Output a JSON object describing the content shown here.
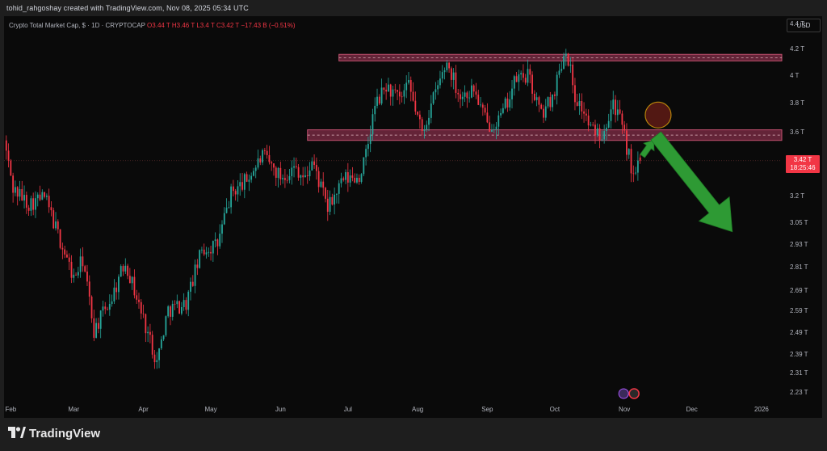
{
  "header": {
    "text": "tohid_rahgoshay created with TradingView.com, Nov 08, 2025 05:34 UTC"
  },
  "legend": {
    "symbol": "Crypto Total Market Cap, $ · 1D · CRYPTOCAP",
    "open": "O3.44 T",
    "high": "H3.46 T",
    "low": "L3.4 T",
    "close": "C3.42 T",
    "change": "−17.43 B (−0.51%)"
  },
  "currency_label": "USD",
  "price_badge": {
    "price": "3.42 T",
    "countdown": "18:25:46"
  },
  "brand": {
    "name": "TradingView"
  },
  "colors": {
    "up": "#26a69a",
    "down": "#f23645",
    "zone_fill": "#7a2a44",
    "arrow": "#2e9a34",
    "circle": "#b8860b"
  },
  "chart_data": {
    "type": "candlestick",
    "title": "Crypto Total Market Cap, $ · 1D · CRYPTOCAP",
    "y_scale": "log",
    "y_ticks": [
      "4.4 T",
      "4.2 T",
      "4 T",
      "3.8 T",
      "3.6 T",
      "3.42 T",
      "3.2 T",
      "3.05 T",
      "2.93 T",
      "2.81 T",
      "2.69 T",
      "2.59 T",
      "2.49 T",
      "2.39 T",
      "2.31 T",
      "2.23 T"
    ],
    "y_tick_values": [
      4.4,
      4.2,
      4.0,
      3.8,
      3.6,
      3.42,
      3.2,
      3.05,
      2.93,
      2.81,
      2.69,
      2.59,
      2.49,
      2.39,
      2.31,
      2.23
    ],
    "x_ticks": [
      "Feb",
      "Mar",
      "Apr",
      "May",
      "Jun",
      "Jul",
      "Aug",
      "Sep",
      "Oct",
      "Nov",
      "Dec",
      "2026"
    ],
    "x_range": [
      "2025-01-29",
      "2026-01-10"
    ],
    "resistance_zones": [
      {
        "from": 4.11,
        "to": 4.16,
        "mid": 4.135
      },
      {
        "from": 3.55,
        "to": 3.62,
        "mid": 3.585
      }
    ],
    "price_line": 3.42,
    "ohlc_path": [
      [
        "2025-01-29",
        3.55
      ],
      [
        "2025-02-02",
        3.25
      ],
      [
        "2025-02-09",
        3.16
      ],
      [
        "2025-02-16",
        3.2
      ],
      [
        "2025-02-23",
        2.95
      ],
      [
        "2025-03-01",
        2.75
      ],
      [
        "2025-03-05",
        2.85
      ],
      [
        "2025-03-10",
        2.5
      ],
      [
        "2025-03-18",
        2.66
      ],
      [
        "2025-03-24",
        2.84
      ],
      [
        "2025-03-30",
        2.62
      ],
      [
        "2025-04-07",
        2.36
      ],
      [
        "2025-04-12",
        2.6
      ],
      [
        "2025-04-20",
        2.63
      ],
      [
        "2025-04-27",
        2.9
      ],
      [
        "2025-05-04",
        2.93
      ],
      [
        "2025-05-10",
        3.22
      ],
      [
        "2025-05-17",
        3.3
      ],
      [
        "2025-05-24",
        3.45
      ],
      [
        "2025-06-01",
        3.32
      ],
      [
        "2025-06-08",
        3.38
      ],
      [
        "2025-06-12",
        3.3
      ],
      [
        "2025-06-15",
        3.42
      ],
      [
        "2025-06-22",
        3.13
      ],
      [
        "2025-06-29",
        3.3
      ],
      [
        "2025-07-06",
        3.32
      ],
      [
        "2025-07-09",
        3.45
      ],
      [
        "2025-07-13",
        3.78
      ],
      [
        "2025-07-18",
        3.92
      ],
      [
        "2025-07-24",
        3.82
      ],
      [
        "2025-07-28",
        3.92
      ],
      [
        "2025-08-03",
        3.6
      ],
      [
        "2025-08-09",
        3.88
      ],
      [
        "2025-08-14",
        4.1
      ],
      [
        "2025-08-20",
        3.85
      ],
      [
        "2025-08-26",
        3.9
      ],
      [
        "2025-09-01",
        3.65
      ],
      [
        "2025-09-07",
        3.7
      ],
      [
        "2025-09-14",
        3.98
      ],
      [
        "2025-09-19",
        4.0
      ],
      [
        "2025-09-25",
        3.72
      ],
      [
        "2025-09-30",
        3.85
      ],
      [
        "2025-10-06",
        4.22
      ],
      [
        "2025-10-10",
        3.85
      ],
      [
        "2025-10-14",
        3.74
      ],
      [
        "2025-10-17",
        3.62
      ],
      [
        "2025-10-22",
        3.6
      ],
      [
        "2025-10-27",
        3.82
      ],
      [
        "2025-10-30",
        3.68
      ],
      [
        "2025-11-03",
        3.45
      ],
      [
        "2025-11-05",
        3.3
      ],
      [
        "2025-11-08",
        3.42
      ]
    ],
    "annotations": [
      {
        "type": "circle",
        "date": "2025-11-16",
        "value": 3.72
      },
      {
        "type": "arrow",
        "direction": "up",
        "from": [
          "2025-11-09",
          3.45
        ],
        "to": [
          "2025-11-14",
          3.55
        ]
      },
      {
        "type": "arrow",
        "direction": "down",
        "from": [
          "2025-11-15",
          3.58
        ],
        "to": [
          "2025-12-19",
          3.0
        ]
      }
    ]
  }
}
